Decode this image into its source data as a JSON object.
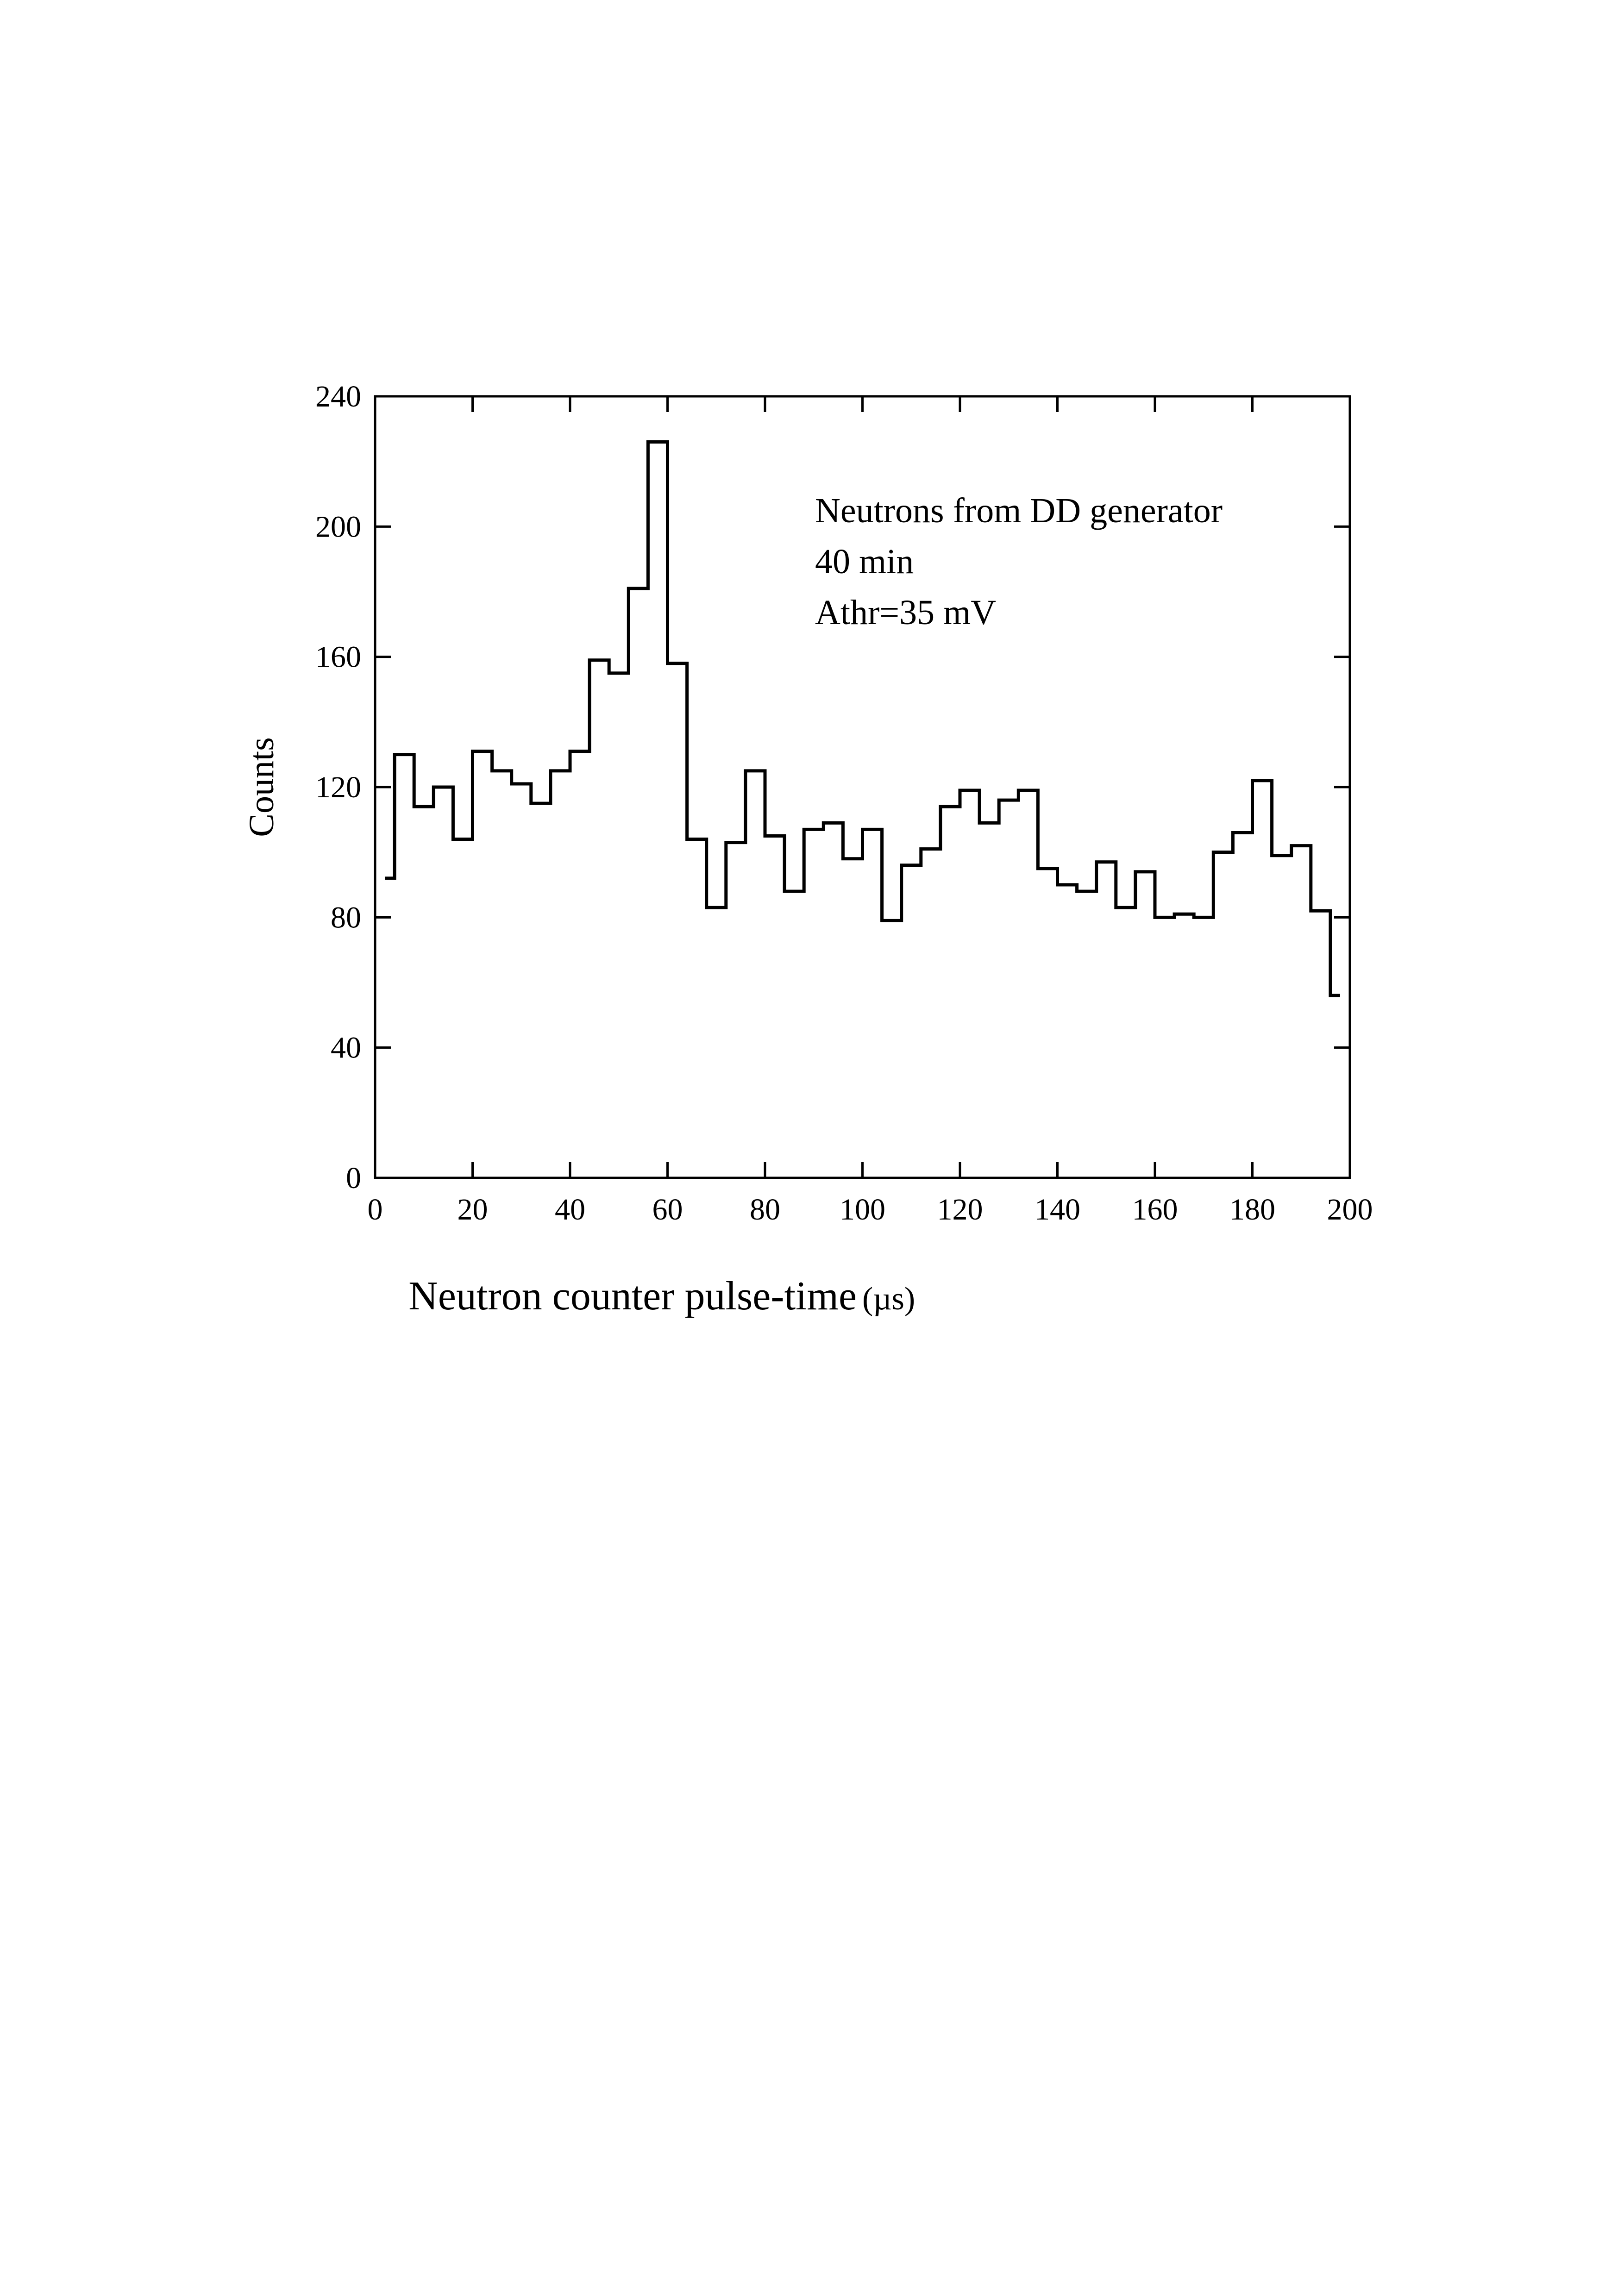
{
  "chart_data": {
    "type": "histogram",
    "xlabel": "Neutron counter pulse-time",
    "xlabel_unit": "(µs)",
    "ylabel": "Counts",
    "xlim": [
      0,
      200
    ],
    "ylim": [
      0,
      240
    ],
    "xticks": [
      0,
      20,
      40,
      60,
      80,
      100,
      120,
      140,
      160,
      180,
      200
    ],
    "yticks": [
      0,
      40,
      80,
      120,
      160,
      200,
      240
    ],
    "grid": false,
    "annotations": [
      "Neutrons from DD generator",
      "40 min",
      "Athr=35 mV"
    ],
    "series": [
      {
        "bin_edges": [
          2,
          4,
          8,
          12,
          16,
          20,
          24,
          28,
          32,
          36,
          40,
          44,
          48,
          52,
          56,
          60,
          64,
          68,
          72,
          76,
          80,
          84,
          88,
          92,
          96,
          100,
          104,
          108,
          112,
          116,
          120,
          124,
          128,
          132,
          136,
          140,
          144,
          148,
          152,
          156,
          160,
          164,
          168,
          172,
          176,
          180,
          184,
          188,
          192,
          196,
          198
        ],
        "values": [
          92,
          130,
          114,
          120,
          104,
          131,
          125,
          121,
          115,
          125,
          131,
          159,
          155,
          181,
          226,
          158,
          104,
          83,
          103,
          125,
          105,
          88,
          107,
          109,
          98,
          107,
          79,
          96,
          101,
          114,
          119,
          109,
          116,
          119,
          95,
          90,
          88,
          97,
          83,
          94,
          80,
          81,
          80,
          100,
          106,
          122,
          99,
          102,
          82,
          56
        ],
        "color": "#000000"
      }
    ]
  }
}
